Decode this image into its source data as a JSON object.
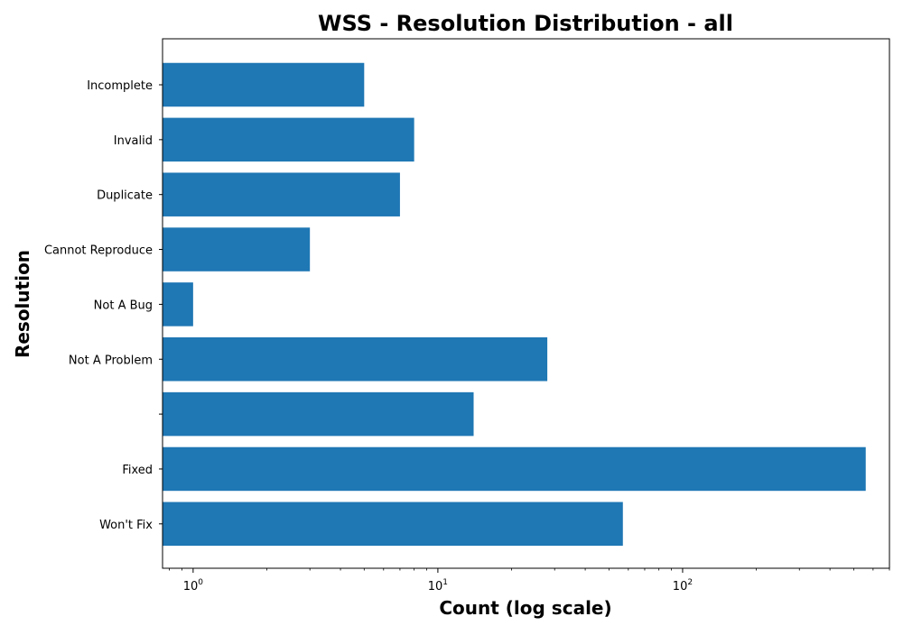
{
  "chart_data": {
    "type": "bar",
    "orientation": "horizontal",
    "title": "WSS - Resolution Distribution - all",
    "xlabel": "Count (log scale)",
    "ylabel": "Resolution",
    "x_scale": "log",
    "xlim": [
      0.75,
      700
    ],
    "x_ticks": [
      {
        "base": "10",
        "exp": "0",
        "value": 1
      },
      {
        "base": "10",
        "exp": "1",
        "value": 10
      },
      {
        "base": "10",
        "exp": "2",
        "value": 100
      }
    ],
    "categories": [
      "Incomplete",
      "Invalid",
      "Duplicate",
      "Cannot Reproduce",
      "Not A Bug",
      "Not A Problem",
      "",
      "Fixed",
      "Won't Fix"
    ],
    "values": [
      5,
      8,
      7,
      3,
      1,
      28,
      14,
      560,
      57
    ],
    "colors": {
      "bar": "#1f77b4",
      "frame": "#000000"
    },
    "grid": false,
    "legend": "none"
  }
}
